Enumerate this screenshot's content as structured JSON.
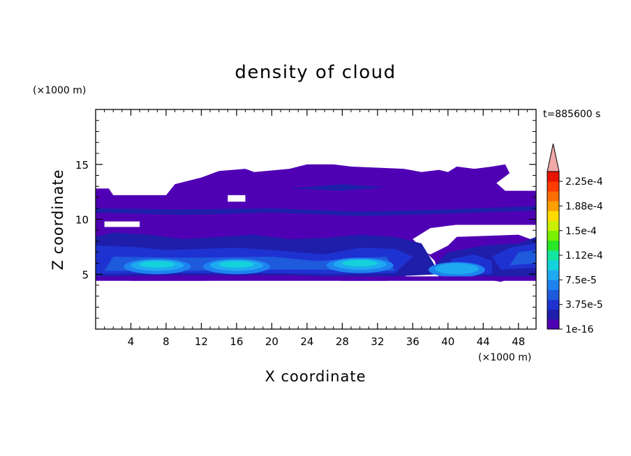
{
  "chart_data": {
    "type": "heatmap",
    "title": "density of cloud",
    "xlabel": "X coordinate",
    "ylabel": "Z coordinate",
    "x_unit": "(×1000 m)",
    "y_unit": "(×1000 m)",
    "time_label": "t=885600 s",
    "xlim": [
      0,
      50
    ],
    "ylim": [
      0,
      20
    ],
    "x_ticks": [
      "4",
      "8",
      "12",
      "16",
      "20",
      "24",
      "28",
      "32",
      "36",
      "40",
      "44",
      "48"
    ],
    "y_ticks": [
      "5",
      "10",
      "15"
    ],
    "colorbar": {
      "levels": [
        "1e-16",
        "3.75e-5",
        "7.5e-5",
        "1.12e-4",
        "1.5e-4",
        "1.88e-4",
        "2.25e-4"
      ],
      "colors": [
        "#5000b4",
        "#1e1eaa",
        "#1e32d2",
        "#1e5adc",
        "#1e82f0",
        "#1eaaf0",
        "#14d2dc",
        "#14e6a0",
        "#28e628",
        "#78f000",
        "#c8f000",
        "#ffdc00",
        "#ffa000",
        "#ff6e00",
        "#ff3c00",
        "#e61400",
        "#f0a8a8"
      ],
      "extend": "max"
    },
    "cloud_layer": {
      "z_base": 4.6,
      "z_top": 15,
      "dense_cores": [
        {
          "x_center": 7,
          "z": 5.7,
          "peak_level": "1.12e-4"
        },
        {
          "x_center": 16,
          "z": 5.7,
          "peak_level": "1.12e-4"
        },
        {
          "x_center": 30,
          "z": 5.8,
          "peak_level": "1.12e-4"
        },
        {
          "x_center": 41,
          "z": 5.4,
          "peak_level": "7.5e-5"
        }
      ]
    }
  }
}
